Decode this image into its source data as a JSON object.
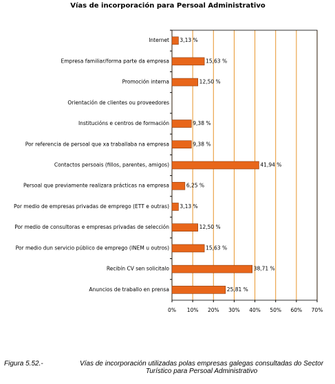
{
  "chart_data": {
    "type": "hbar",
    "title": "Vías de incorporación para Persoal Administrativo",
    "categories": [
      "Internet",
      "Empresa familiar/forma parte da empresa",
      "Promoción interna",
      "Orientación de clientes ou proveedores",
      "Institucións e centros de formación",
      "Por referencia de persoal que xa traballaba na empresa",
      "Contactos persoais (fillos, parentes, amigos)",
      "Persoal que previamente realizara prácticas na empresa",
      "Por medio de empresas privadas de emprego (ETT e outras)",
      "Por medio  de consultoras e empresas privadas de selección",
      "Por medio dun servicio público de emprego (INEM u outros)",
      "Recibín CV sen solicitalo",
      "Anuncios de traballo en prensa"
    ],
    "values": [
      3.13,
      15.63,
      12.5,
      null,
      9.38,
      9.38,
      41.94,
      6.25,
      3.13,
      12.5,
      15.63,
      38.71,
      25.81
    ],
    "value_labels": [
      "3,13 %",
      "15,63 %",
      "12,50 %",
      null,
      "9,38 %",
      "9,38 %",
      "41,94 %",
      "6,25 %",
      "3,13 %",
      "12,50 %",
      "15,63 %",
      "38,71 %",
      "25,81 %"
    ],
    "color": "#e8661a",
    "grid": true,
    "xlim": [
      0,
      70
    ],
    "xticks": [
      {
        "value": 0,
        "label": "0%"
      },
      {
        "value": 10,
        "label": "10%"
      },
      {
        "value": 20,
        "label": "20%"
      },
      {
        "value": 30,
        "label": "30%"
      },
      {
        "value": 40,
        "label": "40%"
      },
      {
        "value": 50,
        "label": "50%"
      },
      {
        "value": 60,
        "label": "60%"
      },
      {
        "value": 70,
        "label": "70%"
      }
    ],
    "caption_label": "Figura 5.52.-",
    "caption": "Vías de incorporación utilizadas polas empresas galegas consultadas do Sector Turístico para Persoal Administrativo"
  }
}
